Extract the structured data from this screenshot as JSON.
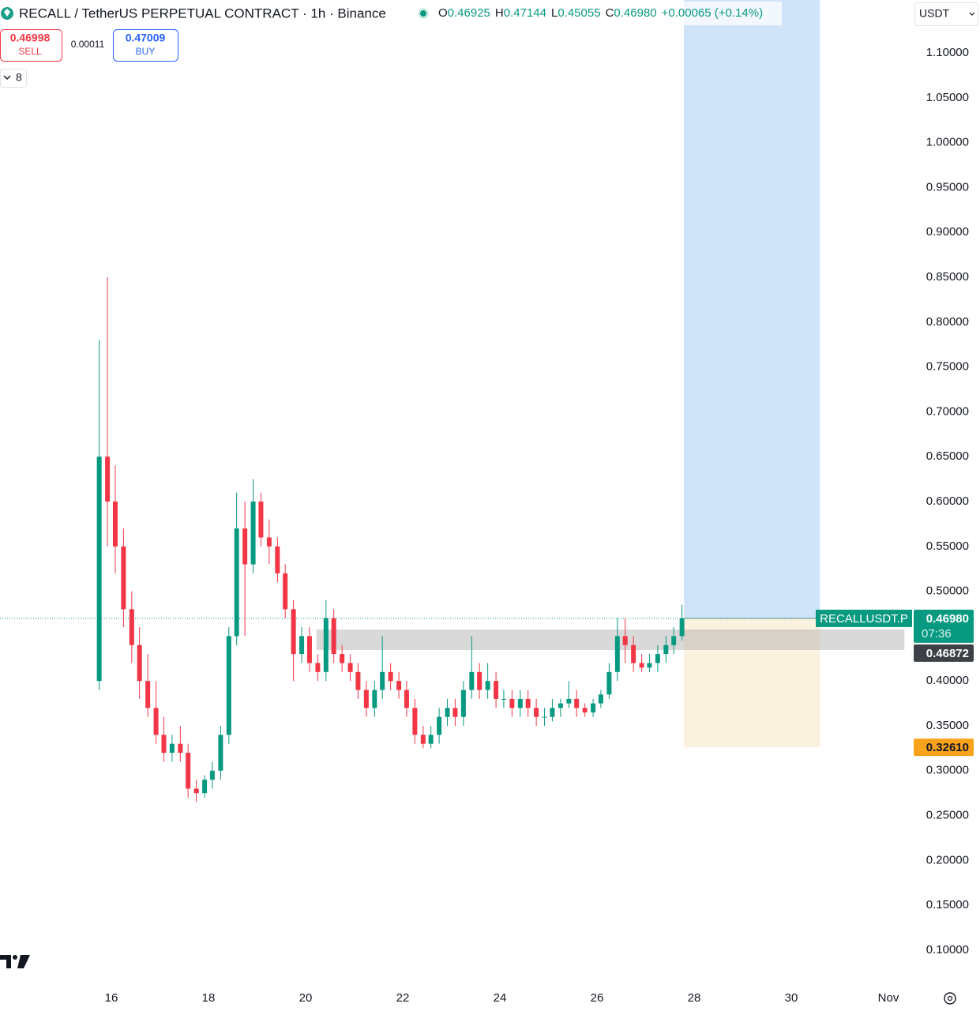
{
  "header": {
    "title": "RECALL / TetherUS PERPETUAL CONTRACT · 1h · Binance",
    "ohlc": [
      {
        "key": "O",
        "value": "0.46925"
      },
      {
        "key": "H",
        "value": "0.47144"
      },
      {
        "key": "L",
        "value": "0.45055"
      },
      {
        "key": "C",
        "value": "0.46980"
      }
    ],
    "change": "+0.00065 (+0.14%)"
  },
  "trade": {
    "sell_price": "0.46998",
    "sell": "SELL",
    "spread": "0.00011",
    "buy_price": "0.47009",
    "buy": "BUY"
  },
  "indicators": "8",
  "currency": "USDT",
  "chart_data": {
    "type": "candlestick",
    "up_color": "#089981",
    "down_color": "#f23645",
    "grid": false,
    "xlim": [
      13.707,
      32.488
    ],
    "xticks": [
      16,
      18,
      20,
      22,
      24,
      26,
      28,
      30,
      {
        "value": 32,
        "label": "Nov"
      }
    ],
    "ylim": [
      0.063,
      1.159
    ],
    "yticks": [
      {
        "value": 0.1,
        "label": "0.10000"
      },
      {
        "value": 0.15,
        "label": "0.15000"
      },
      {
        "value": 0.2,
        "label": "0.20000"
      },
      {
        "value": 0.25,
        "label": "0.25000"
      },
      {
        "value": 0.3,
        "label": "0.30000"
      },
      {
        "value": 0.35,
        "label": "0.35000"
      },
      {
        "value": 0.4,
        "label": "0.40000"
      },
      {
        "value": 0.45,
        "label": "0.45000"
      },
      {
        "value": 0.5,
        "label": "0.50000"
      },
      {
        "value": 0.55,
        "label": "0.55000"
      },
      {
        "value": 0.6,
        "label": "0.60000"
      },
      {
        "value": 0.65,
        "label": "0.65000"
      },
      {
        "value": 0.7,
        "label": "0.70000"
      },
      {
        "value": 0.75,
        "label": "0.75000"
      },
      {
        "value": 0.8,
        "label": "0.80000"
      },
      {
        "value": 0.85,
        "label": "0.85000"
      },
      {
        "value": 0.9,
        "label": "0.90000"
      },
      {
        "value": 0.95,
        "label": "0.95000"
      },
      {
        "value": 1.0,
        "label": "1.00000"
      },
      {
        "value": 1.05,
        "label": "1.05000"
      },
      {
        "value": 1.1,
        "label": "1.10000"
      }
    ],
    "x": [
      15.75,
      15.92,
      16.08,
      16.25,
      16.42,
      16.58,
      16.75,
      16.92,
      17.08,
      17.25,
      17.42,
      17.58,
      17.75,
      17.92,
      18.08,
      18.25,
      18.42,
      18.58,
      18.75,
      18.92,
      19.08,
      19.25,
      19.42,
      19.58,
      19.75,
      19.92,
      20.08,
      20.25,
      20.42,
      20.58,
      20.75,
      20.92,
      21.08,
      21.25,
      21.42,
      21.58,
      21.75,
      21.92,
      22.08,
      22.25,
      22.42,
      22.58,
      22.75,
      22.92,
      23.08,
      23.25,
      23.42,
      23.58,
      23.75,
      23.92,
      24.08,
      24.25,
      24.42,
      24.58,
      24.75,
      24.92,
      25.08,
      25.25,
      25.42,
      25.58,
      25.75,
      25.92,
      26.08,
      26.25,
      26.42,
      26.58,
      26.75,
      26.92,
      27.08,
      27.25,
      27.42,
      27.58,
      27.75
    ],
    "open": [
      0.4,
      0.65,
      0.6,
      0.55,
      0.48,
      0.44,
      0.4,
      0.37,
      0.34,
      0.32,
      0.33,
      0.32,
      0.28,
      0.275,
      0.29,
      0.3,
      0.34,
      0.45,
      0.57,
      0.53,
      0.6,
      0.56,
      0.55,
      0.52,
      0.48,
      0.43,
      0.45,
      0.42,
      0.41,
      0.47,
      0.43,
      0.42,
      0.41,
      0.39,
      0.37,
      0.39,
      0.41,
      0.4,
      0.39,
      0.37,
      0.34,
      0.33,
      0.34,
      0.36,
      0.37,
      0.36,
      0.39,
      0.41,
      0.39,
      0.4,
      0.38,
      0.38,
      0.37,
      0.38,
      0.37,
      0.36,
      0.36,
      0.37,
      0.375,
      0.38,
      0.37,
      0.365,
      0.375,
      0.385,
      0.41,
      0.45,
      0.44,
      0.42,
      0.415,
      0.42,
      0.43,
      0.44,
      0.45
    ],
    "high": [
      0.78,
      0.85,
      0.64,
      0.57,
      0.5,
      0.46,
      0.43,
      0.4,
      0.36,
      0.34,
      0.35,
      0.33,
      0.29,
      0.295,
      0.31,
      0.35,
      0.46,
      0.61,
      0.6,
      0.625,
      0.61,
      0.58,
      0.56,
      0.53,
      0.49,
      0.46,
      0.46,
      0.43,
      0.49,
      0.48,
      0.44,
      0.43,
      0.42,
      0.4,
      0.4,
      0.45,
      0.42,
      0.41,
      0.4,
      0.38,
      0.35,
      0.35,
      0.37,
      0.38,
      0.38,
      0.4,
      0.45,
      0.42,
      0.42,
      0.41,
      0.39,
      0.39,
      0.39,
      0.39,
      0.38,
      0.37,
      0.38,
      0.38,
      0.4,
      0.39,
      0.375,
      0.38,
      0.39,
      0.42,
      0.47,
      0.47,
      0.45,
      0.43,
      0.43,
      0.44,
      0.45,
      0.46,
      0.485
    ],
    "low": [
      0.39,
      0.55,
      0.52,
      0.46,
      0.42,
      0.38,
      0.36,
      0.33,
      0.31,
      0.31,
      0.31,
      0.27,
      0.265,
      0.27,
      0.28,
      0.29,
      0.33,
      0.44,
      0.45,
      0.52,
      0.55,
      0.53,
      0.51,
      0.47,
      0.4,
      0.42,
      0.41,
      0.4,
      0.4,
      0.42,
      0.41,
      0.4,
      0.38,
      0.36,
      0.36,
      0.38,
      0.39,
      0.38,
      0.36,
      0.33,
      0.325,
      0.325,
      0.33,
      0.35,
      0.35,
      0.35,
      0.38,
      0.38,
      0.38,
      0.37,
      0.37,
      0.36,
      0.36,
      0.36,
      0.35,
      0.35,
      0.355,
      0.36,
      0.37,
      0.36,
      0.36,
      0.36,
      0.37,
      0.38,
      0.4,
      0.42,
      0.41,
      0.41,
      0.41,
      0.41,
      0.42,
      0.43,
      0.445
    ],
    "close": [
      0.65,
      0.6,
      0.55,
      0.48,
      0.44,
      0.4,
      0.37,
      0.34,
      0.32,
      0.33,
      0.32,
      0.28,
      0.275,
      0.29,
      0.3,
      0.34,
      0.45,
      0.57,
      0.53,
      0.6,
      0.56,
      0.55,
      0.52,
      0.48,
      0.43,
      0.45,
      0.42,
      0.41,
      0.47,
      0.43,
      0.42,
      0.41,
      0.39,
      0.37,
      0.39,
      0.41,
      0.4,
      0.39,
      0.37,
      0.34,
      0.33,
      0.34,
      0.36,
      0.37,
      0.36,
      0.39,
      0.41,
      0.39,
      0.4,
      0.38,
      0.38,
      0.37,
      0.38,
      0.37,
      0.36,
      0.36,
      0.37,
      0.375,
      0.38,
      0.37,
      0.365,
      0.375,
      0.385,
      0.41,
      0.45,
      0.44,
      0.42,
      0.415,
      0.42,
      0.43,
      0.44,
      0.45,
      0.4698
    ],
    "zone": {
      "x": [
        20.22,
        32.33
      ],
      "y": [
        0.4345,
        0.4574
      ]
    },
    "position": {
      "x": [
        27.79,
        30.59
      ],
      "entry": 0.4698,
      "stop": {
        "value": 0.3261,
        "label": "0.32610"
      }
    },
    "symbol": "RECALLUSDT.P",
    "last_price": {
      "value": 0.4698,
      "label": "0.46980"
    },
    "countdown": "07:36",
    "mark_price": {
      "value": 0.46872,
      "label": "0.46872"
    }
  }
}
